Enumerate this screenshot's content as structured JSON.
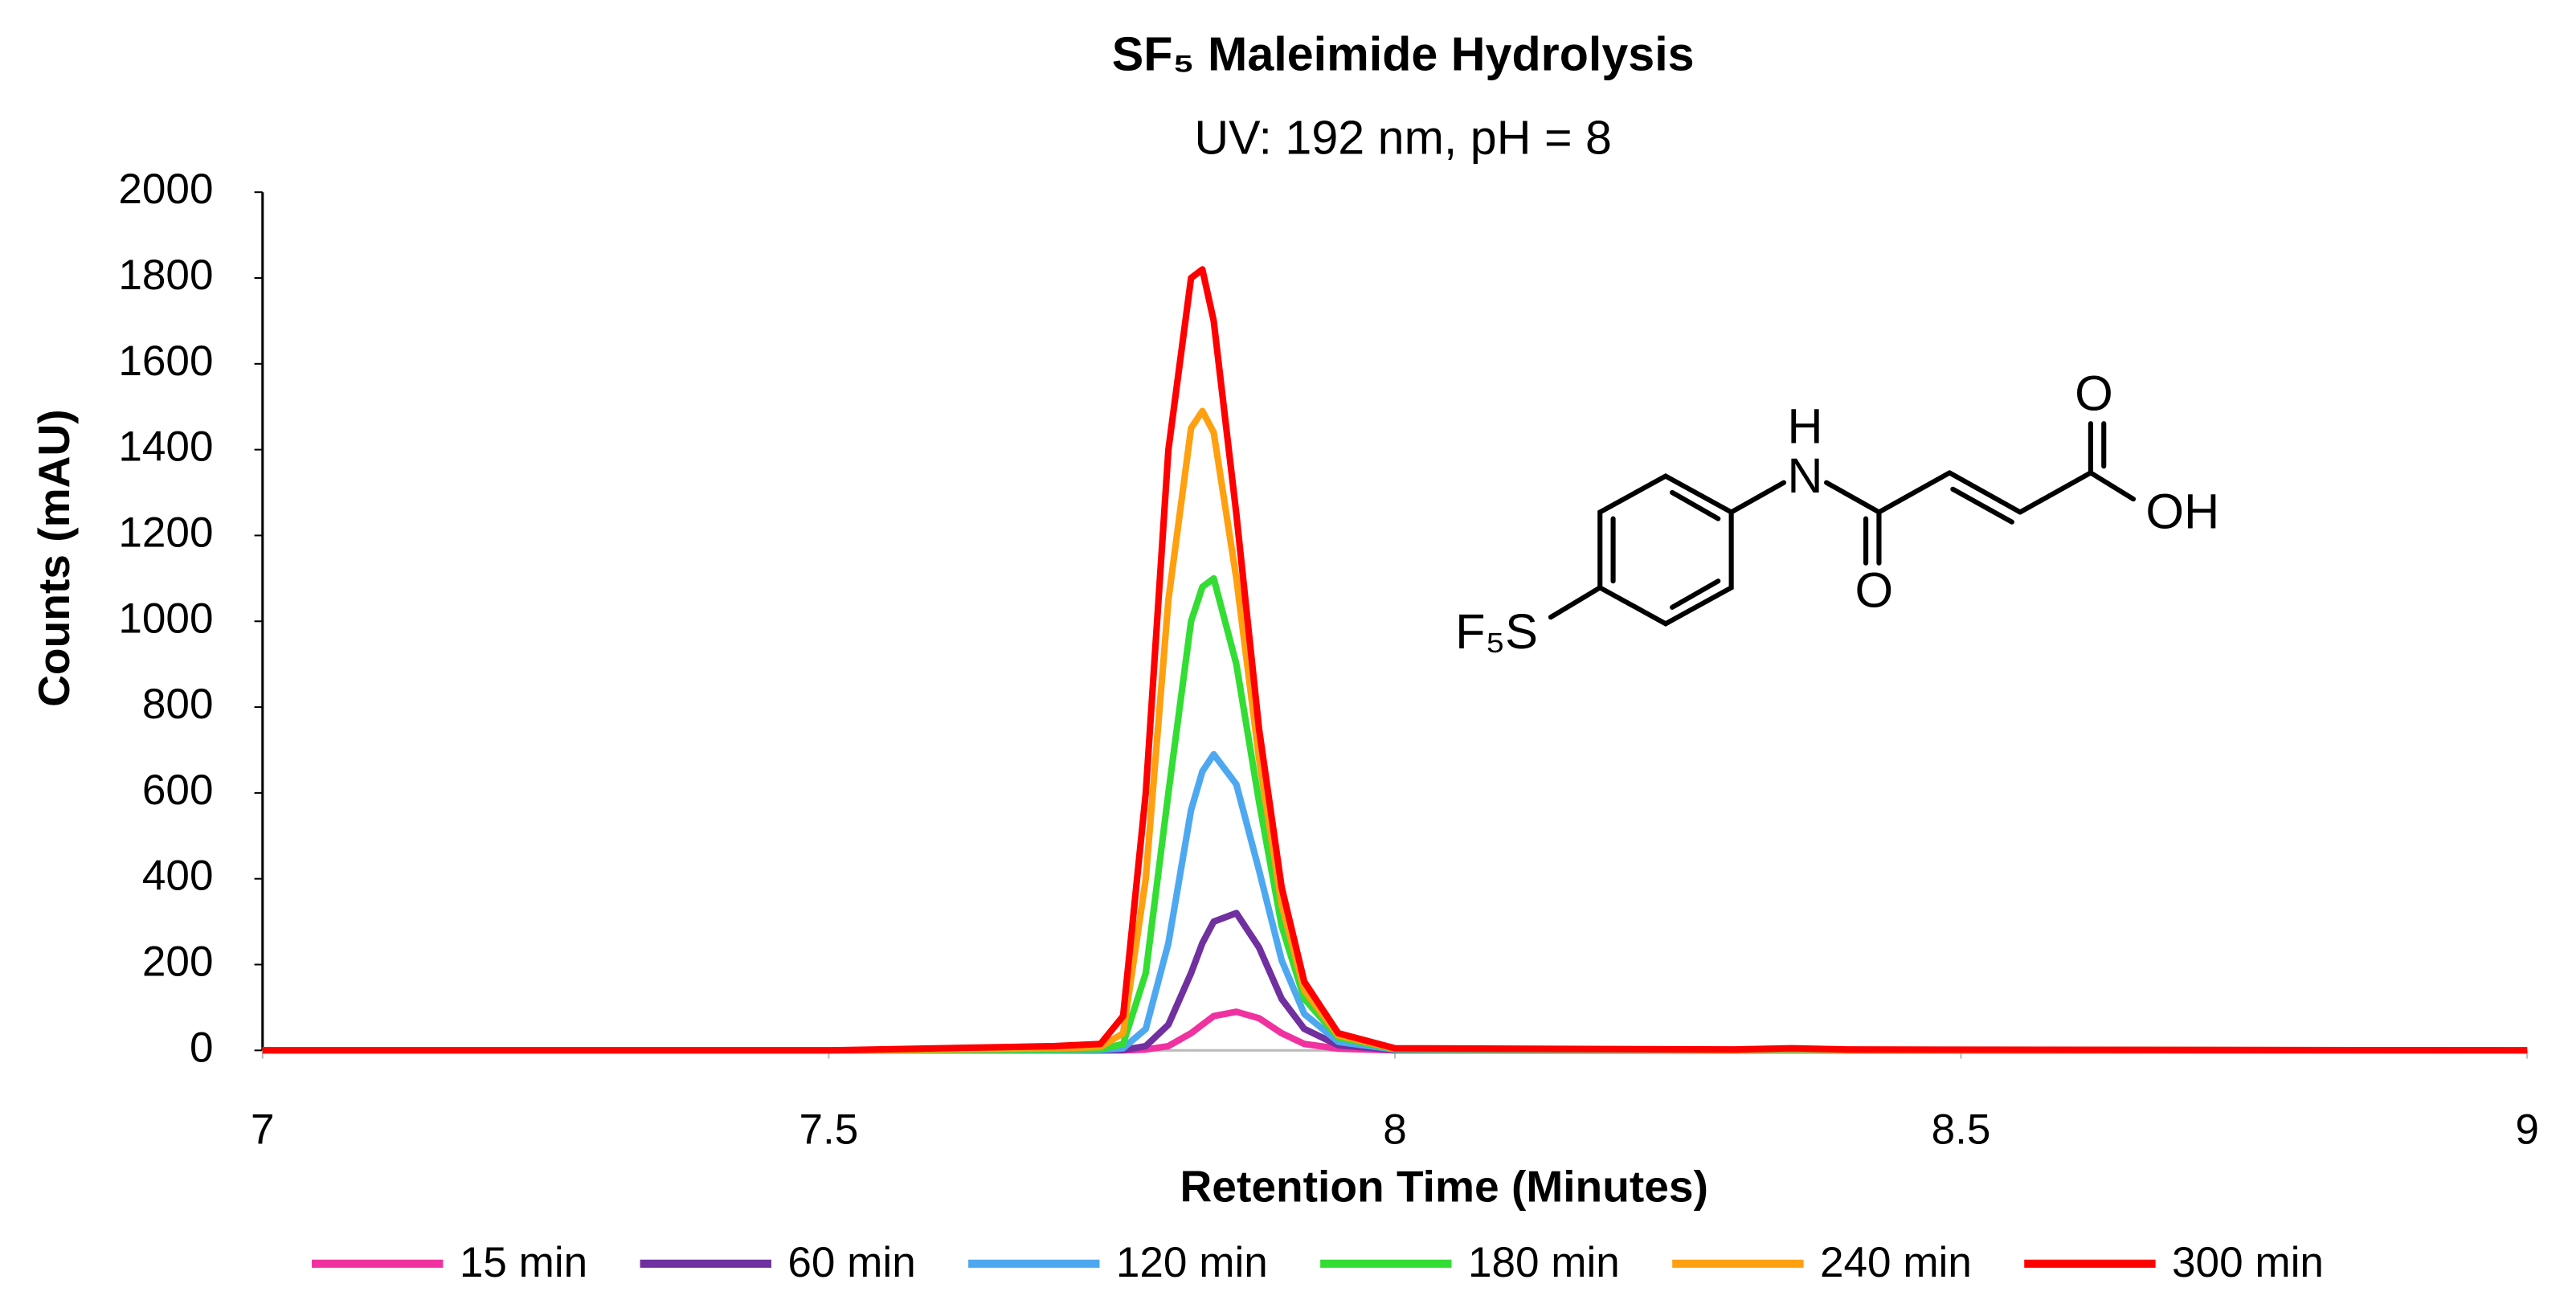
{
  "chart_data": {
    "type": "line",
    "title": "SF₅ Maleimide Hydrolysis",
    "subtitle": "UV: 192 nm, pH = 8",
    "x_label": "Retention Time (Minutes)",
    "y_label": "Counts (mAU)",
    "x": [
      7,
      7.5,
      7.7,
      7.74,
      7.76,
      7.78,
      7.8,
      7.82,
      7.83,
      7.84,
      7.86,
      7.88,
      7.9,
      7.92,
      7.95,
      8,
      8.3,
      8.35,
      8.4,
      9
    ],
    "series": [
      {
        "name": "15 min",
        "color": "#f032a0",
        "values": [
          0,
          0,
          0,
          0,
          0,
          2,
          10,
          40,
          60,
          80,
          90,
          75,
          40,
          15,
          4,
          0,
          0,
          0,
          0,
          0
        ]
      },
      {
        "name": "60 min",
        "color": "#7030a0",
        "values": [
          0,
          0,
          0,
          0,
          1,
          10,
          60,
          180,
          250,
          300,
          320,
          240,
          120,
          50,
          12,
          1,
          0,
          1,
          0,
          0
        ]
      },
      {
        "name": "120 min",
        "color": "#4ea8f0",
        "values": [
          0,
          0,
          0,
          1,
          5,
          50,
          250,
          560,
          650,
          690,
          620,
          420,
          210,
          85,
          20,
          2,
          0,
          1,
          0,
          0
        ]
      },
      {
        "name": "180 min",
        "color": "#33dd33",
        "values": [
          0,
          0,
          2,
          3,
          15,
          180,
          600,
          1000,
          1080,
          1100,
          900,
          580,
          290,
          120,
          30,
          3,
          1,
          2,
          1,
          0
        ]
      },
      {
        "name": "240 min",
        "color": "#ffa010",
        "values": [
          0,
          0,
          5,
          8,
          40,
          400,
          1050,
          1450,
          1490,
          1440,
          1100,
          680,
          340,
          140,
          35,
          4,
          1,
          3,
          1,
          0
        ]
      },
      {
        "name": "300 min",
        "color": "#ff0000",
        "values": [
          0,
          0,
          10,
          15,
          80,
          600,
          1400,
          1800,
          1820,
          1700,
          1250,
          750,
          380,
          160,
          40,
          5,
          2,
          5,
          2,
          0
        ]
      }
    ],
    "xlim": [
      7,
      9
    ],
    "xticks": [
      7,
      7.5,
      8,
      8.5,
      9
    ],
    "ylim": [
      0,
      2000
    ],
    "yticks": [
      0,
      200,
      400,
      600,
      800,
      1000,
      1200,
      1400,
      1600,
      1800,
      2000
    ],
    "grid": false,
    "legend": "bottom",
    "annotations": [
      "H",
      "N",
      "O",
      "OH",
      "O",
      "F₅S"
    ]
  }
}
